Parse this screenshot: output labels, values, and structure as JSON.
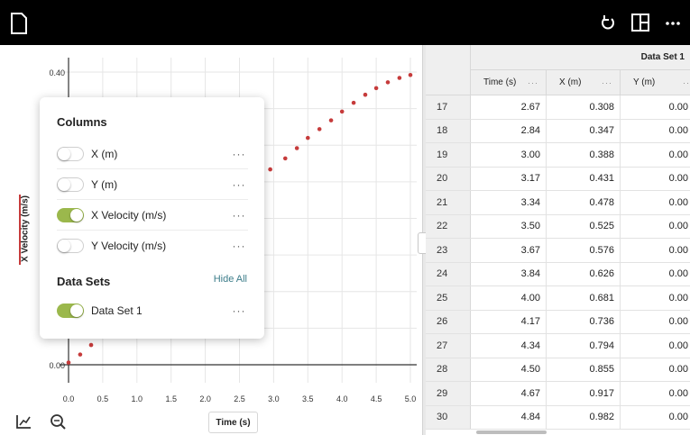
{
  "graph": {
    "y_ticks": [
      {
        "value": 0.4,
        "label": "0.40"
      },
      {
        "value": 0.0,
        "label": "0.00"
      }
    ],
    "x_ticks": [
      "0.0",
      "0.5",
      "1.0",
      "1.5",
      "2.0",
      "2.5",
      "3.0",
      "3.5",
      "4.0",
      "4.5",
      "5.0"
    ],
    "y_axis_label": "X Velocity (m/s)",
    "x_axis_label": "Time (s)",
    "point_color": "#c63b3b",
    "points": [
      [
        0.0,
        0.003
      ],
      [
        0.17,
        0.014
      ],
      [
        0.33,
        0.027
      ],
      [
        2.95,
        0.267
      ],
      [
        3.17,
        0.282
      ],
      [
        3.34,
        0.296
      ],
      [
        3.5,
        0.31
      ],
      [
        3.67,
        0.322
      ],
      [
        3.84,
        0.334
      ],
      [
        4.0,
        0.346
      ],
      [
        4.17,
        0.358
      ],
      [
        4.34,
        0.369
      ],
      [
        4.5,
        0.378
      ],
      [
        4.67,
        0.386
      ],
      [
        4.84,
        0.392
      ],
      [
        5.0,
        0.396
      ]
    ]
  },
  "panel": {
    "columns_title": "Columns",
    "columns": [
      {
        "label": "X (m)",
        "on": false
      },
      {
        "label": "Y (m)",
        "on": false
      },
      {
        "label": "X Velocity (m/s)",
        "on": true
      },
      {
        "label": "Y Velocity (m/s)",
        "on": false
      }
    ],
    "datasets_title": "Data Sets",
    "hide_all": "Hide All",
    "datasets": [
      {
        "label": "Data Set 1",
        "on": true
      }
    ],
    "more_glyph": "···"
  },
  "table": {
    "dataset_title": "Data Set 1",
    "columns": [
      "Time (s)",
      "X (m)",
      "Y (m)"
    ],
    "rows": [
      {
        "idx": "17",
        "t": "2.67",
        "x": "0.308",
        "y": "0.00"
      },
      {
        "idx": "18",
        "t": "2.84",
        "x": "0.347",
        "y": "0.00"
      },
      {
        "idx": "19",
        "t": "3.00",
        "x": "0.388",
        "y": "0.00"
      },
      {
        "idx": "20",
        "t": "3.17",
        "x": "0.431",
        "y": "0.00"
      },
      {
        "idx": "21",
        "t": "3.34",
        "x": "0.478",
        "y": "0.00"
      },
      {
        "idx": "22",
        "t": "3.50",
        "x": "0.525",
        "y": "0.00"
      },
      {
        "idx": "23",
        "t": "3.67",
        "x": "0.576",
        "y": "0.00"
      },
      {
        "idx": "24",
        "t": "3.84",
        "x": "0.626",
        "y": "0.00"
      },
      {
        "idx": "25",
        "t": "4.00",
        "x": "0.681",
        "y": "0.00"
      },
      {
        "idx": "26",
        "t": "4.17",
        "x": "0.736",
        "y": "0.00"
      },
      {
        "idx": "27",
        "t": "4.34",
        "x": "0.794",
        "y": "0.00"
      },
      {
        "idx": "28",
        "t": "4.50",
        "x": "0.855",
        "y": "0.00"
      },
      {
        "idx": "29",
        "t": "4.67",
        "x": "0.917",
        "y": "0.00"
      },
      {
        "idx": "30",
        "t": "4.84",
        "x": "0.982",
        "y": "0.00"
      }
    ]
  },
  "icons": {
    "document": "document-icon",
    "undo": "undo-icon",
    "layout": "layout-icon",
    "more": "more-icon",
    "graph_tool": "graph-tool-icon",
    "zoom": "zoom-icon"
  }
}
